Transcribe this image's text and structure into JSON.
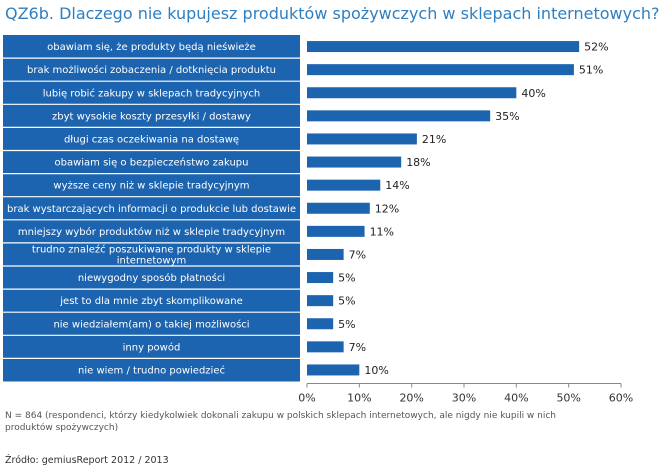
{
  "chart_data": {
    "type": "bar",
    "orientation": "horizontal",
    "title": "QZ6b. Dlaczego nie kupujesz produktów spożywczych w sklepach internetowych?",
    "categories": [
      "obawiam się, że produkty będą nieświeże",
      "brak możliwości zobaczenia / dotknięcia produktu",
      "lubię robić zakupy w sklepach tradycyjnych",
      "zbyt wysokie koszty przesyłki / dostawy",
      "długi czas oczekiwania na dostawę",
      "obawiam się o bezpieczeństwo zakupu",
      "wyższe ceny niż w sklepie tradycyjnym",
      "brak wystarczających informacji o produkcie lub dostawie",
      "mniejszy wybór produktów niż w sklepie tradycyjnym",
      "trudno znaleźć poszukiwane produkty w sklepie internetowym",
      "niewygodny sposób płatności",
      "jest to dla mnie zbyt skomplikowane",
      "nie wiedziałem(am) o takiej możliwości",
      "inny powód",
      "nie wiem / trudno powiedzieć"
    ],
    "category_lines": [
      [
        "obawiam się, że produkty będą nieświeże"
      ],
      [
        "brak możliwości zobaczenia / dotknięcia produktu"
      ],
      [
        "lubię robić zakupy w sklepach tradycyjnych"
      ],
      [
        "zbyt wysokie koszty przesyłki / dostawy"
      ],
      [
        "długi czas oczekiwania na dostawę"
      ],
      [
        "obawiam się o bezpieczeństwo zakupu"
      ],
      [
        "wyższe ceny niż w sklepie tradycyjnym"
      ],
      [
        "brak wystarczających informacji o produkcie lub dostawie"
      ],
      [
        "mniejszy wybór produktów niż w sklepie tradycyjnym"
      ],
      [
        "trudno znaleźć poszukiwane produkty w sklepie",
        "internetowym"
      ],
      [
        "niewygodny sposób płatności"
      ],
      [
        "jest to dla mnie zbyt skomplikowane"
      ],
      [
        "nie wiedziałem(am) o takiej możliwości"
      ],
      [
        "inny powód"
      ],
      [
        "nie wiem / trudno powiedzieć"
      ]
    ],
    "values": [
      52,
      51,
      40,
      35,
      21,
      18,
      14,
      12,
      11,
      7,
      5,
      5,
      5,
      7,
      10
    ],
    "value_labels": [
      "52%",
      "51%",
      "40%",
      "35%",
      "21%",
      "18%",
      "14%",
      "12%",
      "11%",
      "7%",
      "5%",
      "5%",
      "5%",
      "7%",
      "10%"
    ],
    "xlim": [
      0,
      60
    ],
    "xticks": [
      0,
      10,
      20,
      30,
      40,
      50,
      60
    ],
    "xtick_labels": [
      "0%",
      "10%",
      "20%",
      "30%",
      "40%",
      "50%",
      "60%"
    ],
    "xlabel": "",
    "ylabel": "",
    "grid": false,
    "bar_color": "#1d64b0",
    "label_bg_color": "#1d64b0"
  },
  "footnote": "N = 864 (respondenci, którzy kiedykolwiek dokonali zakupu w polskich sklepach internetowych, ale nigdy nie kupili w nich produktów spożywczych)",
  "source": "Źródło: gemiusReport 2012 / 2013",
  "colors": {
    "title": "#2e7fc1",
    "bar": "#1d64b0"
  }
}
